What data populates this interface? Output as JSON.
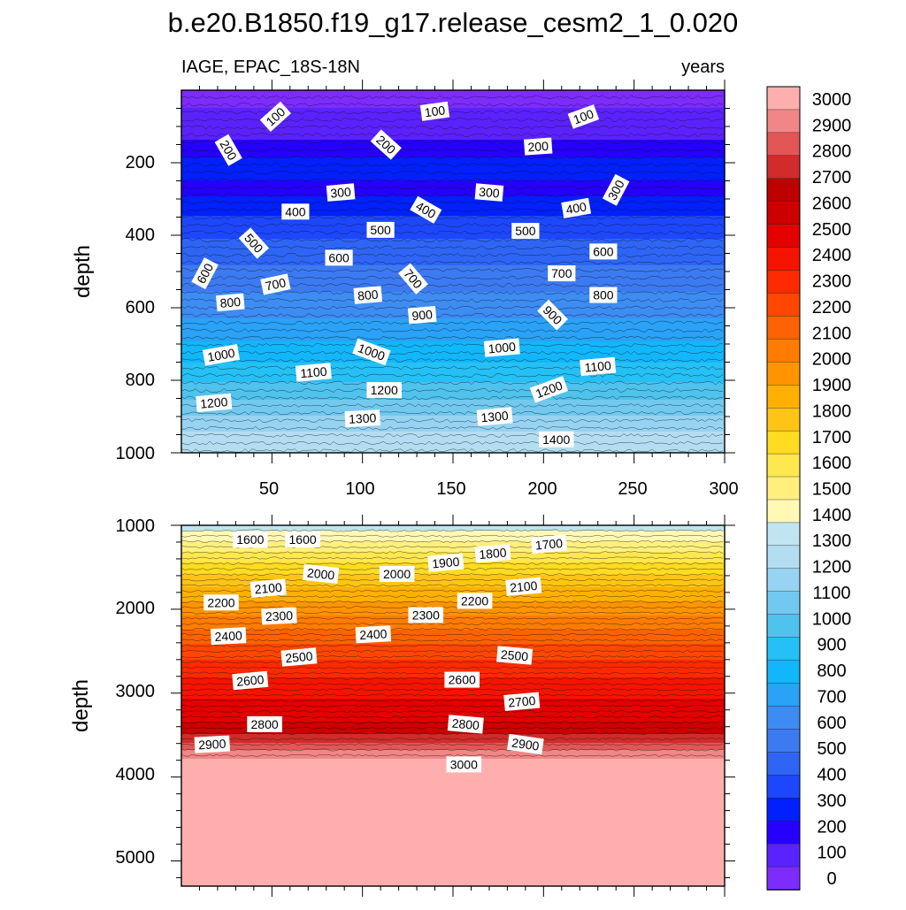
{
  "chart_data": {
    "type": "contour",
    "title": "b.e20.B1850.f19_g17.release_cesm2_1_0.020",
    "left_subtitle": "IAGE, EPAC_18S-18N",
    "right_subtitle": "years",
    "x_ticks": [
      "50",
      "100",
      "150",
      "200",
      "250",
      "300"
    ],
    "panels": [
      {
        "name": "upper",
        "ylabel": "depth",
        "ylim": [
          1000,
          0
        ],
        "y_ticks": [
          "200",
          "400",
          "600",
          "800",
          "1000"
        ],
        "contour_labels": [
          {
            "text": "100",
            "x": 52,
            "depth": 73,
            "angle": -42
          },
          {
            "text": "100",
            "x": 140,
            "depth": 58,
            "angle": -8
          },
          {
            "text": "100",
            "x": 222,
            "depth": 73,
            "angle": -20
          },
          {
            "text": "200",
            "x": 26,
            "depth": 165,
            "angle": 60
          },
          {
            "text": "200",
            "x": 113,
            "depth": 150,
            "angle": 42
          },
          {
            "text": "200",
            "x": 197,
            "depth": 155,
            "angle": -4
          },
          {
            "text": "300",
            "x": 88,
            "depth": 282,
            "angle": -5
          },
          {
            "text": "300",
            "x": 170,
            "depth": 282,
            "angle": 5
          },
          {
            "text": "300",
            "x": 240,
            "depth": 275,
            "angle": -62
          },
          {
            "text": "400",
            "x": 63,
            "depth": 335,
            "angle": 0
          },
          {
            "text": "400",
            "x": 135,
            "depth": 330,
            "angle": 30
          },
          {
            "text": "400",
            "x": 218,
            "depth": 325,
            "angle": -10
          },
          {
            "text": "500",
            "x": 40,
            "depth": 422,
            "angle": 48
          },
          {
            "text": "500",
            "x": 110,
            "depth": 385,
            "angle": 0
          },
          {
            "text": "500",
            "x": 190,
            "depth": 388,
            "angle": 0
          },
          {
            "text": "600",
            "x": 13,
            "depth": 505,
            "angle": -62
          },
          {
            "text": "600",
            "x": 87,
            "depth": 462,
            "angle": 0
          },
          {
            "text": "600",
            "x": 233,
            "depth": 445,
            "angle": 0
          },
          {
            "text": "700",
            "x": 52,
            "depth": 535,
            "angle": -12
          },
          {
            "text": "700",
            "x": 128,
            "depth": 520,
            "angle": 50
          },
          {
            "text": "700",
            "x": 210,
            "depth": 505,
            "angle": 0
          },
          {
            "text": "800",
            "x": 27,
            "depth": 585,
            "angle": -5
          },
          {
            "text": "800",
            "x": 103,
            "depth": 565,
            "angle": -5
          },
          {
            "text": "800",
            "x": 233,
            "depth": 565,
            "angle": 0
          },
          {
            "text": "900",
            "x": 133,
            "depth": 620,
            "angle": -5
          },
          {
            "text": "900",
            "x": 205,
            "depth": 620,
            "angle": 45
          },
          {
            "text": "1000",
            "x": 22,
            "depth": 730,
            "angle": -10
          },
          {
            "text": "1000",
            "x": 105,
            "depth": 722,
            "angle": 20
          },
          {
            "text": "1000",
            "x": 177,
            "depth": 710,
            "angle": -5
          },
          {
            "text": "1100",
            "x": 73,
            "depth": 778,
            "angle": -5
          },
          {
            "text": "1100",
            "x": 230,
            "depth": 762,
            "angle": -5
          },
          {
            "text": "1200",
            "x": 18,
            "depth": 862,
            "angle": -5
          },
          {
            "text": "1200",
            "x": 112,
            "depth": 827,
            "angle": 0
          },
          {
            "text": "1200",
            "x": 203,
            "depth": 825,
            "angle": -20
          },
          {
            "text": "1300",
            "x": 100,
            "depth": 905,
            "angle": -3
          },
          {
            "text": "1300",
            "x": 173,
            "depth": 900,
            "angle": -5
          },
          {
            "text": "1400",
            "x": 207,
            "depth": 963,
            "angle": 0
          }
        ]
      },
      {
        "name": "lower",
        "ylabel": "depth",
        "ylim": [
          5300,
          1000
        ],
        "y_ticks": [
          "1000",
          "2000",
          "3000",
          "4000",
          "5000"
        ],
        "contour_labels": [
          {
            "text": "1600",
            "x": 38,
            "depth": 1170,
            "angle": 0
          },
          {
            "text": "1600",
            "x": 67,
            "depth": 1170,
            "angle": 0
          },
          {
            "text": "1700",
            "x": 203,
            "depth": 1225,
            "angle": -5
          },
          {
            "text": "1800",
            "x": 172,
            "depth": 1335,
            "angle": -5
          },
          {
            "text": "1900",
            "x": 146,
            "depth": 1445,
            "angle": -5
          },
          {
            "text": "2000",
            "x": 77,
            "depth": 1580,
            "angle": 6
          },
          {
            "text": "2000",
            "x": 119,
            "depth": 1580,
            "angle": 0
          },
          {
            "text": "2100",
            "x": 48,
            "depth": 1750,
            "angle": -5
          },
          {
            "text": "2100",
            "x": 189,
            "depth": 1730,
            "angle": -5
          },
          {
            "text": "2200",
            "x": 22,
            "depth": 1920,
            "angle": 0
          },
          {
            "text": "2200",
            "x": 162,
            "depth": 1900,
            "angle": 0
          },
          {
            "text": "2300",
            "x": 54,
            "depth": 2080,
            "angle": -3
          },
          {
            "text": "2300",
            "x": 135,
            "depth": 2070,
            "angle": 0
          },
          {
            "text": "2400",
            "x": 26,
            "depth": 2320,
            "angle": -3
          },
          {
            "text": "2400",
            "x": 106,
            "depth": 2300,
            "angle": -3
          },
          {
            "text": "2500",
            "x": 65,
            "depth": 2570,
            "angle": -5
          },
          {
            "text": "2500",
            "x": 184,
            "depth": 2550,
            "angle": 5
          },
          {
            "text": "2600",
            "x": 38,
            "depth": 2850,
            "angle": -5
          },
          {
            "text": "2600",
            "x": 155,
            "depth": 2840,
            "angle": 0
          },
          {
            "text": "2700",
            "x": 188,
            "depth": 3100,
            "angle": -5
          },
          {
            "text": "2800",
            "x": 46,
            "depth": 3370,
            "angle": 0
          },
          {
            "text": "2800",
            "x": 157,
            "depth": 3370,
            "angle": 5
          },
          {
            "text": "2900",
            "x": 17,
            "depth": 3610,
            "angle": -3
          },
          {
            "text": "2900",
            "x": 190,
            "depth": 3610,
            "angle": 8
          },
          {
            "text": "3000",
            "x": 156,
            "depth": 3850,
            "angle": 0
          }
        ]
      }
    ],
    "colorbar": {
      "levels": [
        "0",
        "100",
        "200",
        "300",
        "400",
        "500",
        "600",
        "700",
        "800",
        "900",
        "1000",
        "1100",
        "1200",
        "1300",
        "1400",
        "1500",
        "1600",
        "1700",
        "1800",
        "1900",
        "2000",
        "2100",
        "2200",
        "2300",
        "2400",
        "2500",
        "2600",
        "2700",
        "2800",
        "2900",
        "3000"
      ],
      "colors": [
        "#7d2bff",
        "#5a22ff",
        "#2600ff",
        "#0020ff",
        "#1d47ff",
        "#2e65f5",
        "#3c7af2",
        "#3d8cf3",
        "#2aa2f7",
        "#12b7fb",
        "#25c0f5",
        "#4fc2ed",
        "#72c9ef",
        "#97d3f2",
        "#b3def2",
        "#c1e4f3",
        "#fff9b5",
        "#fff07e",
        "#ffe74e",
        "#ffdb21",
        "#ffc415",
        "#ffb000",
        "#ff9400",
        "#ff7c00",
        "#ff6200",
        "#ff4700",
        "#ff2a00",
        "#f51400",
        "#e40000",
        "#cc0000",
        "#bd0000",
        "#d12b2b",
        "#e35656",
        "#f08686",
        "#ffaeae"
      ]
    }
  }
}
